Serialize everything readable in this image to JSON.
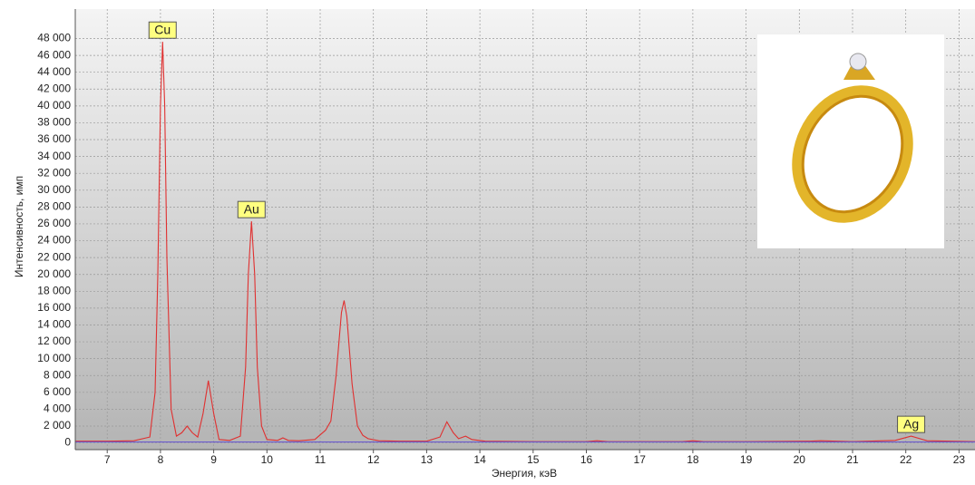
{
  "chart_data": {
    "type": "line",
    "x_label": "Энергия, кэВ",
    "y_label": "Интенсивность, имп",
    "xlim": [
      6.4,
      23.3
    ],
    "ylim": [
      -800,
      51500
    ],
    "xticks": [
      7,
      8,
      9,
      10,
      11,
      12,
      13,
      14,
      15,
      16,
      17,
      18,
      19,
      20,
      21,
      22,
      23
    ],
    "yticks": [
      0,
      {
        "value": 2000,
        "label": "2 000"
      },
      {
        "value": 4000,
        "label": "4 000"
      },
      {
        "value": 6000,
        "label": "6 000"
      },
      {
        "value": 8000,
        "label": "8 000"
      },
      {
        "value": 10000,
        "label": "10 000"
      },
      {
        "value": 12000,
        "label": "12 000"
      },
      {
        "value": 14000,
        "label": "14 000"
      },
      {
        "value": 16000,
        "label": "16 000"
      },
      {
        "value": 18000,
        "label": "18 000"
      },
      {
        "value": 20000,
        "label": "20 000"
      },
      {
        "value": 22000,
        "label": "22 000"
      },
      {
        "value": 24000,
        "label": "24 000"
      },
      {
        "value": 26000,
        "label": "26 000"
      },
      {
        "value": 28000,
        "label": "28 000"
      },
      {
        "value": 30000,
        "label": "30 000"
      },
      {
        "value": 32000,
        "label": "32 000"
      },
      {
        "value": 34000,
        "label": "34 000"
      },
      {
        "value": 36000,
        "label": "36 000"
      },
      {
        "value": 38000,
        "label": "38 000"
      },
      {
        "value": 40000,
        "label": "40 000"
      },
      {
        "value": 42000,
        "label": "42 000"
      },
      {
        "value": 44000,
        "label": "44 000"
      },
      {
        "value": 46000,
        "label": "46 000"
      },
      {
        "value": 48000,
        "label": "48 000"
      }
    ],
    "grid": true,
    "series": [
      {
        "color": "#e03030",
        "x": [
          6.4,
          7.0,
          7.5,
          7.8,
          7.9,
          7.95,
          8.0,
          8.04,
          8.08,
          8.12,
          8.2,
          8.3,
          8.4,
          8.5,
          8.6,
          8.7,
          8.8,
          8.9,
          9.0,
          9.1,
          9.3,
          9.5,
          9.6,
          9.65,
          9.71,
          9.77,
          9.82,
          9.9,
          10.0,
          10.2,
          10.3,
          10.4,
          10.6,
          10.9,
          11.1,
          11.2,
          11.3,
          11.4,
          11.45,
          11.5,
          11.6,
          11.7,
          11.8,
          11.9,
          12.1,
          12.5,
          13.0,
          13.25,
          13.38,
          13.5,
          13.6,
          13.73,
          13.85,
          14.1,
          15,
          16,
          16.2,
          16.4,
          17,
          17.8,
          18.0,
          18.2,
          19,
          20.2,
          20.4,
          21,
          21.8,
          22.1,
          22.4,
          23.3
        ],
        "values": [
          200,
          200,
          250,
          700,
          6000,
          20000,
          40000,
          47600,
          40000,
          22000,
          4000,
          800,
          1200,
          2000,
          1200,
          700,
          3500,
          7400,
          3500,
          400,
          300,
          800,
          9000,
          20000,
          26300,
          20000,
          9000,
          2000,
          400,
          300,
          600,
          300,
          250,
          400,
          1500,
          2600,
          8000,
          15500,
          16900,
          15000,
          7000,
          2000,
          900,
          500,
          250,
          200,
          200,
          700,
          2500,
          1200,
          500,
          800,
          400,
          200,
          150,
          150,
          250,
          150,
          150,
          150,
          250,
          150,
          150,
          200,
          250,
          150,
          300,
          800,
          250,
          150
        ]
      },
      {
        "color": "#6a5acd",
        "x": [
          6.4,
          23.3
        ],
        "values": [
          100,
          100
        ]
      }
    ],
    "annotations": [
      {
        "text": "Cu",
        "x": 8.04,
        "y": 47600
      },
      {
        "text": "Au",
        "x": 9.71,
        "y": 26300
      },
      {
        "text": "Ag",
        "x": 22.1,
        "y": 800
      }
    ]
  }
}
